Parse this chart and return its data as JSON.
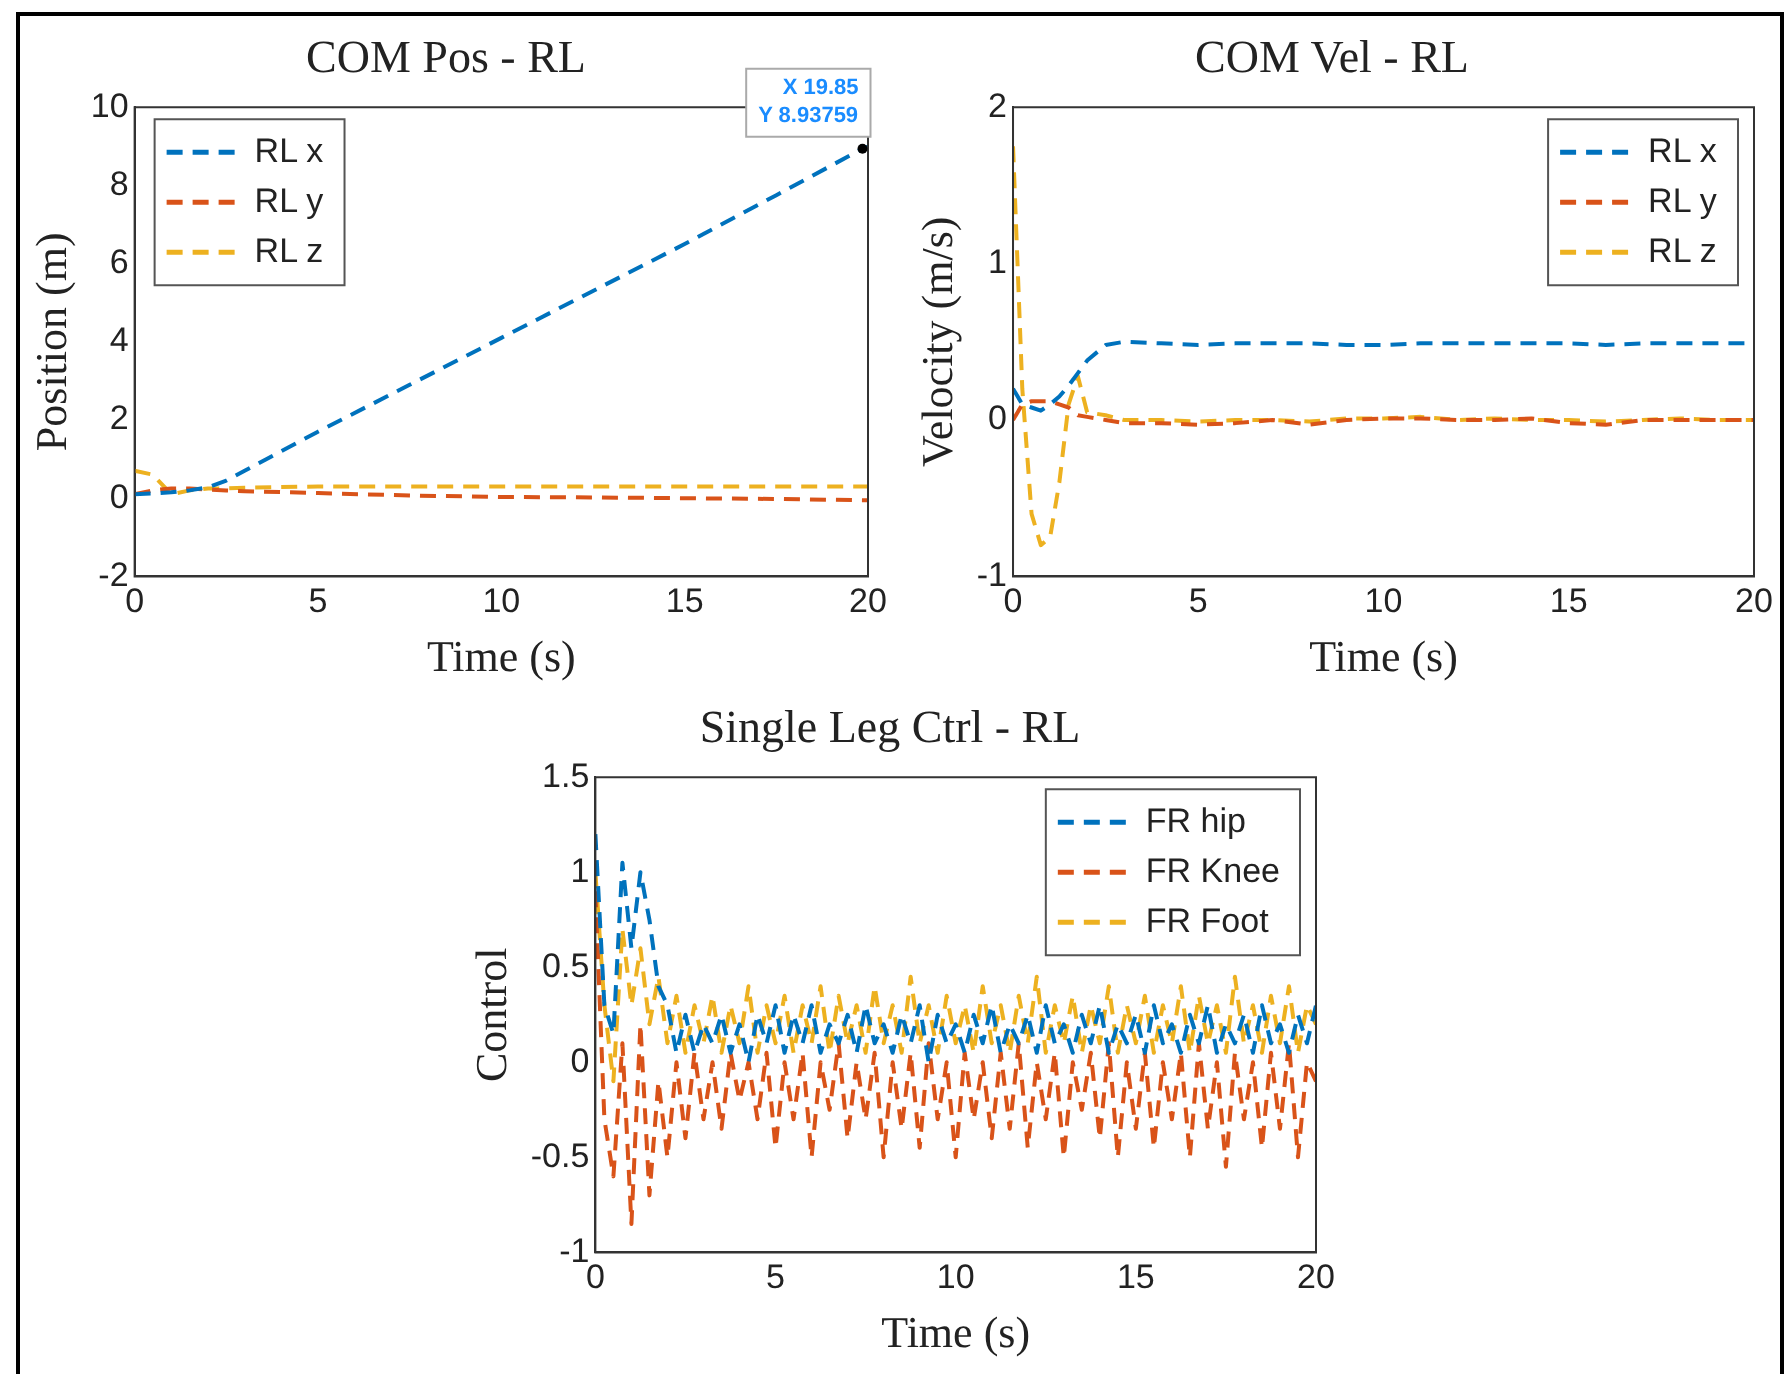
{
  "chart_data": [
    {
      "type": "line",
      "title": "COM Pos - RL",
      "xlabel": "Time (s)",
      "ylabel": "Position (m)",
      "line_style": "dashed",
      "legend": "top left",
      "grid": false,
      "x": [
        0,
        0.5,
        1,
        1.5,
        2,
        2.5,
        3,
        5,
        7.5,
        10,
        12.5,
        15,
        17.5,
        19.85,
        20
      ],
      "series": [
        {
          "name": "RL x",
          "color": "#0072bd",
          "values": [
            0.1,
            0.12,
            0.15,
            0.2,
            0.28,
            0.45,
            0.7,
            1.7,
            2.9,
            4.1,
            5.3,
            6.5,
            7.75,
            8.93759,
            8.99
          ]
        },
        {
          "name": "RL y",
          "color": "#d95319",
          "values": [
            0.1,
            0.2,
            0.25,
            0.25,
            0.22,
            0.2,
            0.18,
            0.13,
            0.07,
            0.03,
            0.02,
            0,
            -0.02,
            -0.05,
            -0.05
          ]
        },
        {
          "name": "RL z",
          "color": "#edb120",
          "values": [
            0.7,
            0.6,
            0.1,
            0.2,
            0.25,
            0.25,
            0.27,
            0.3,
            0.3,
            0.3,
            0.3,
            0.3,
            0.3,
            0.3,
            0.3
          ]
        }
      ],
      "xlim": [
        0,
        20
      ],
      "xticks": [
        0,
        5,
        10,
        15,
        20
      ],
      "ylim": [
        -2,
        10
      ],
      "yticks": [
        -2,
        0,
        2,
        4,
        6,
        8,
        10
      ],
      "annotations": [
        {
          "text": "X 19.85\nY 8.93759",
          "x": 19.85,
          "y": 8.93759
        }
      ]
    },
    {
      "type": "line",
      "title": "COM Vel - RL",
      "xlabel": "Time (s)",
      "ylabel": "Velocity (m/s)",
      "line_style": "dashed",
      "legend": "top right",
      "grid": false,
      "x": [
        0,
        0.25,
        0.5,
        0.75,
        1,
        1.25,
        1.5,
        1.75,
        2,
        2.5,
        3,
        4,
        5,
        6,
        7,
        8,
        9,
        10,
        11,
        12,
        13,
        14,
        15,
        16,
        17,
        18,
        19,
        20
      ],
      "series": [
        {
          "name": "RL x",
          "color": "#0072bd",
          "values": [
            0.2,
            0.1,
            0.08,
            0.06,
            0.1,
            0.15,
            0.22,
            0.3,
            0.38,
            0.48,
            0.5,
            0.49,
            0.48,
            0.49,
            0.49,
            0.49,
            0.48,
            0.48,
            0.49,
            0.49,
            0.49,
            0.49,
            0.49,
            0.48,
            0.49,
            0.49,
            0.49,
            0.49
          ]
        },
        {
          "name": "RL y",
          "color": "#d95319",
          "values": [
            0,
            0.1,
            0.12,
            0.12,
            0.12,
            0.1,
            0.08,
            0.03,
            0.02,
            0,
            -0.02,
            -0.02,
            -0.03,
            -0.02,
            0,
            -0.03,
            0,
            0.01,
            0.01,
            0,
            0,
            0.01,
            -0.02,
            -0.03,
            0,
            0,
            0,
            0
          ]
        },
        {
          "name": "RL z",
          "color": "#edb120",
          "values": [
            1.75,
            0.2,
            -0.6,
            -0.8,
            -0.75,
            -0.4,
            0.1,
            0.28,
            0.05,
            0.03,
            0,
            0,
            -0.01,
            0,
            0,
            -0.01,
            0.01,
            0.01,
            0.02,
            0,
            0.01,
            0,
            0,
            -0.01,
            0,
            0.01,
            0,
            0
          ]
        }
      ],
      "xlim": [
        0,
        20
      ],
      "xticks": [
        0,
        5,
        10,
        15,
        20
      ],
      "ylim": [
        -1,
        2
      ],
      "yticks": [
        -1,
        0,
        1,
        2
      ]
    },
    {
      "type": "line",
      "title": "Single Leg Ctrl - RL",
      "xlabel": "Time (s)",
      "ylabel": "Control",
      "line_style": "dashed",
      "legend": "top right",
      "grid": false,
      "x": [
        0,
        0.25,
        0.5,
        0.75,
        1,
        1.25,
        1.5,
        1.75,
        2,
        2.25,
        2.5,
        2.75,
        3,
        3.25,
        3.5,
        3.75,
        4,
        4.25,
        4.5,
        4.75,
        5,
        5.25,
        5.5,
        5.75,
        6,
        6.25,
        6.5,
        6.75,
        7,
        7.25,
        7.5,
        7.75,
        8,
        8.25,
        8.5,
        8.75,
        9,
        9.25,
        9.5,
        9.75,
        10,
        10.25,
        10.5,
        10.75,
        11,
        11.25,
        11.5,
        11.75,
        12,
        12.25,
        12.5,
        12.75,
        13,
        13.25,
        13.5,
        13.75,
        14,
        14.25,
        14.5,
        14.75,
        15,
        15.25,
        15.5,
        15.75,
        16,
        16.25,
        16.5,
        16.75,
        17,
        17.25,
        17.5,
        17.75,
        18,
        18.25,
        18.5,
        18.75,
        19,
        19.25,
        19.5,
        19.75,
        20
      ],
      "series": [
        {
          "name": "FR hip",
          "color": "#0072bd",
          "values": [
            1.2,
            0.3,
            0.15,
            1.05,
            0.6,
            1.0,
            0.75,
            0.4,
            0.3,
            0.05,
            0.25,
            0.05,
            0.2,
            0.1,
            0.25,
            0.05,
            0.2,
            0.0,
            0.25,
            0.1,
            0.3,
            0.05,
            0.25,
            0.1,
            0.3,
            0.05,
            0.2,
            0.1,
            0.25,
            0.05,
            0.3,
            0.1,
            0.2,
            0.05,
            0.25,
            0.1,
            0.3,
            0.0,
            0.25,
            0.1,
            0.2,
            0.05,
            0.25,
            0.1,
            0.3,
            0.05,
            0.2,
            0.1,
            0.25,
            0.05,
            0.3,
            0.1,
            0.2,
            0.05,
            0.25,
            0.1,
            0.3,
            0.05,
            0.2,
            0.1,
            0.25,
            0.05,
            0.3,
            0.1,
            0.2,
            0.05,
            0.25,
            0.1,
            0.3,
            0.05,
            0.2,
            0.1,
            0.25,
            0.05,
            0.3,
            0.1,
            0.2,
            0.05,
            0.25,
            0.1,
            0.3
          ]
        },
        {
          "name": "FR Knee",
          "color": "#d95319",
          "values": [
            0.9,
            -0.3,
            -0.6,
            0.1,
            -0.85,
            0.2,
            -0.7,
            -0.1,
            -0.5,
            0.0,
            -0.4,
            0.05,
            -0.3,
            0.0,
            -0.35,
            0.05,
            -0.2,
            0.0,
            -0.3,
            0.05,
            -0.45,
            0.0,
            -0.3,
            0.05,
            -0.5,
            0.0,
            -0.25,
            0.1,
            -0.4,
            0.0,
            -0.3,
            0.05,
            -0.5,
            0.0,
            -0.35,
            0.05,
            -0.45,
            0.1,
            -0.3,
            0.0,
            -0.5,
            0.05,
            -0.3,
            0.0,
            -0.4,
            0.05,
            -0.35,
            0.1,
            -0.45,
            0.0,
            -0.3,
            0.05,
            -0.5,
            0.0,
            -0.25,
            0.05,
            -0.4,
            0.1,
            -0.5,
            0.0,
            -0.35,
            0.05,
            -0.45,
            0.0,
            -0.3,
            0.05,
            -0.5,
            0.1,
            -0.35,
            0.0,
            -0.55,
            0.05,
            -0.3,
            0.0,
            -0.45,
            0.05,
            -0.35,
            0.1,
            -0.5,
            0.0,
            -0.1
          ]
        },
        {
          "name": "FR Foot",
          "color": "#edb120",
          "values": [
            1.0,
            0.3,
            -0.1,
            0.7,
            0.3,
            0.6,
            0.2,
            0.45,
            0.1,
            0.35,
            0.05,
            0.3,
            0.1,
            0.35,
            0.05,
            0.3,
            0.1,
            0.4,
            0.05,
            0.3,
            0.1,
            0.35,
            0.05,
            0.3,
            0.1,
            0.4,
            0.05,
            0.35,
            0.1,
            0.3,
            0.05,
            0.4,
            0.1,
            0.3,
            0.05,
            0.45,
            0.1,
            0.3,
            0.05,
            0.35,
            0.1,
            0.3,
            0.05,
            0.4,
            0.1,
            0.3,
            0.05,
            0.35,
            0.1,
            0.45,
            0.05,
            0.3,
            0.1,
            0.35,
            0.05,
            0.3,
            0.1,
            0.4,
            0.05,
            0.3,
            0.1,
            0.35,
            0.05,
            0.3,
            0.1,
            0.4,
            0.05,
            0.35,
            0.1,
            0.3,
            0.05,
            0.45,
            0.1,
            0.3,
            0.05,
            0.35,
            0.1,
            0.4,
            0.05,
            0.3,
            0.2
          ]
        }
      ],
      "xlim": [
        0,
        20
      ],
      "xticks": [
        0,
        5,
        10,
        15,
        20
      ],
      "ylim": [
        -1,
        1.5
      ],
      "yticks": [
        -1,
        -0.5,
        0,
        0.5,
        1,
        1.5
      ]
    }
  ]
}
